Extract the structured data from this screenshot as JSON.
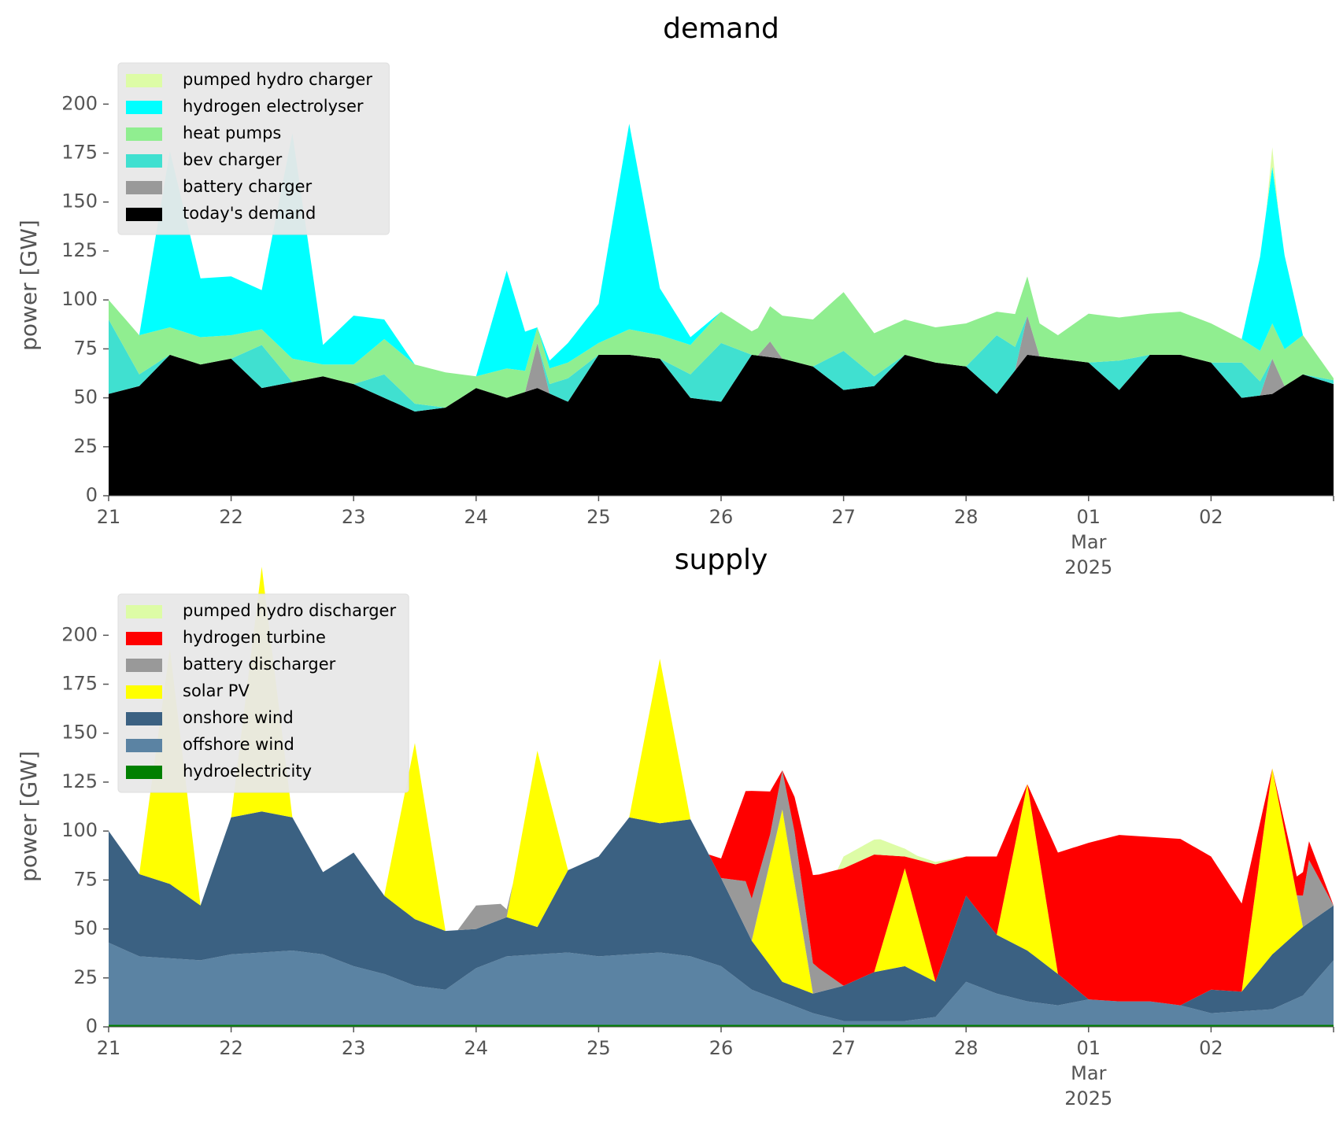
{
  "chart_data": [
    {
      "type": "area",
      "title": "demand",
      "ylabel": "power [GW]",
      "xlabel": "",
      "xlim": [
        "2025-02-21",
        "2025-03-03"
      ],
      "ylim": [
        0,
        215
      ],
      "yticks": [
        0,
        25,
        50,
        75,
        100,
        125,
        150,
        175,
        200
      ],
      "xticks": [
        "21",
        "22",
        "23",
        "24",
        "25",
        "26",
        "27",
        "28",
        "01",
        "02"
      ],
      "xtick_sublabel": {
        "tick": "01",
        "month": "Mar",
        "year": "2025"
      },
      "grid": false,
      "legend_position": "upper-left",
      "stacked": true,
      "legend": [
        {
          "name": "pumped hydro charger",
          "color": "#ddfca6"
        },
        {
          "name": "hydrogen electrolyser",
          "color": "#00ffff"
        },
        {
          "name": "heat pumps",
          "color": "#90ee90"
        },
        {
          "name": "bev charger",
          "color": "#40e0d0"
        },
        {
          "name": "battery charger",
          "color": "#999999"
        },
        {
          "name": "today's demand",
          "color": "#000000"
        }
      ],
      "series": [
        {
          "name": "today's demand",
          "color": "#000000",
          "x": [
            0,
            0.25,
            0.5,
            0.75,
            1,
            1.25,
            1.5,
            1.75,
            2,
            2.25,
            2.5,
            2.75,
            3,
            3.25,
            3.5,
            3.75,
            4,
            4.25,
            4.5,
            4.75,
            5,
            5.25,
            5.5,
            5.75,
            6,
            6.25,
            6.5,
            6.75,
            7,
            7.25,
            7.5,
            7.75,
            8,
            8.25,
            8.5,
            8.75,
            9,
            9.25,
            9.5,
            9.75,
            10
          ],
          "values": [
            52,
            56,
            72,
            67,
            70,
            55,
            58,
            61,
            57,
            50,
            43,
            45,
            55,
            50,
            55,
            48,
            72,
            72,
            70,
            50,
            48,
            72,
            70,
            66,
            54,
            56,
            72,
            68,
            66,
            52,
            72,
            70,
            68,
            54,
            72,
            72,
            68,
            50,
            52,
            62,
            57
          ]
        },
        {
          "name": "battery charger",
          "color": "#999999",
          "x": [
            0,
            1,
            2,
            3,
            3.4,
            3.5,
            3.6,
            4,
            5,
            5.3,
            5.4,
            5.5,
            6,
            7,
            7.4,
            7.5,
            7.6,
            8,
            9,
            9.4,
            9.5,
            9.6,
            10
          ],
          "values": [
            0,
            0,
            0,
            0,
            0,
            23,
            0,
            0,
            0,
            0,
            8,
            0,
            0,
            0,
            0,
            20,
            0,
            0,
            0,
            0,
            18,
            0,
            0
          ]
        },
        {
          "name": "bev charger",
          "color": "#40e0d0",
          "x": [
            0,
            0.25,
            0.5,
            0.75,
            1,
            1.25,
            1.5,
            1.75,
            2,
            2.25,
            2.5,
            2.75,
            3,
            3.25,
            3.5,
            3.75,
            4,
            4.25,
            4.5,
            4.75,
            5,
            5.25,
            5.5,
            5.75,
            6,
            6.25,
            6.5,
            6.75,
            7,
            7.25,
            7.5,
            7.75,
            8,
            8.25,
            8.5,
            8.75,
            9,
            9.25,
            9.5,
            9.75,
            10
          ],
          "values": [
            38,
            6,
            0,
            0,
            0,
            22,
            0,
            0,
            0,
            12,
            4,
            0,
            0,
            0,
            0,
            12,
            0,
            0,
            0,
            12,
            30,
            0,
            0,
            0,
            20,
            5,
            0,
            0,
            0,
            30,
            0,
            0,
            0,
            15,
            0,
            0,
            0,
            18,
            0,
            0,
            2
          ]
        },
        {
          "name": "heat pumps",
          "color": "#90ee90",
          "x": [
            0,
            0.25,
            0.5,
            0.75,
            1,
            1.25,
            1.5,
            1.75,
            2,
            2.25,
            2.5,
            2.75,
            3,
            3.25,
            3.5,
            3.75,
            4,
            4.25,
            4.5,
            4.75,
            5,
            5.25,
            5.5,
            5.75,
            6,
            6.25,
            6.5,
            6.75,
            7,
            7.25,
            7.5,
            7.75,
            8,
            8.25,
            8.5,
            8.75,
            9,
            9.25,
            9.5,
            9.75,
            10
          ],
          "values": [
            10,
            20,
            14,
            14,
            12,
            8,
            12,
            6,
            10,
            18,
            20,
            18,
            6,
            15,
            8,
            8,
            6,
            13,
            12,
            15,
            16,
            12,
            22,
            24,
            30,
            22,
            18,
            18,
            22,
            12,
            20,
            12,
            25,
            22,
            21,
            22,
            20,
            12,
            18,
            20,
            1
          ]
        },
        {
          "name": "hydrogen electrolyser",
          "color": "#00ffff",
          "x": [
            0,
            0.25,
            0.5,
            0.75,
            1,
            1.25,
            1.5,
            1.75,
            2,
            2.25,
            2.5,
            2.75,
            3,
            3.25,
            3.5,
            3.75,
            4,
            4.25,
            4.5,
            4.75,
            5,
            5.25,
            5.5,
            5.75,
            6,
            6.25,
            6.5,
            6.75,
            7,
            7.25,
            7.5,
            7.75,
            8,
            8.25,
            8.5,
            8.75,
            9,
            9.25,
            9.5,
            9.75,
            10
          ],
          "values": [
            0,
            0,
            90,
            30,
            30,
            20,
            115,
            10,
            25,
            10,
            0,
            0,
            0,
            50,
            0,
            10,
            20,
            105,
            24,
            4,
            0,
            0,
            0,
            0,
            0,
            0,
            0,
            0,
            0,
            0,
            0,
            0,
            0,
            0,
            0,
            0,
            0,
            0,
            80,
            0,
            0
          ]
        },
        {
          "name": "pumped hydro charger",
          "color": "#ddfca6",
          "x": [
            0,
            9.45,
            9.5,
            9.55,
            10
          ],
          "values": [
            0,
            0,
            10,
            0,
            0
          ]
        }
      ]
    },
    {
      "type": "area",
      "title": "supply",
      "ylabel": "power [GW]",
      "xlabel": "",
      "xlim": [
        "2025-02-21",
        "2025-03-03"
      ],
      "ylim": [
        0,
        215
      ],
      "yticks": [
        0,
        25,
        50,
        75,
        100,
        125,
        150,
        175,
        200
      ],
      "xticks": [
        "21",
        "22",
        "23",
        "24",
        "25",
        "26",
        "27",
        "28",
        "01",
        "02"
      ],
      "xtick_sublabel": {
        "tick": "01",
        "month": "Mar",
        "year": "2025"
      },
      "grid": false,
      "legend_position": "upper-left",
      "stacked": true,
      "legend": [
        {
          "name": "pumped hydro discharger",
          "color": "#ddfca6"
        },
        {
          "name": "hydrogen turbine",
          "color": "#ff0000"
        },
        {
          "name": "battery discharger",
          "color": "#999999"
        },
        {
          "name": "solar PV",
          "color": "#ffff00"
        },
        {
          "name": "onshore wind",
          "color": "#3b6182"
        },
        {
          "name": "offshore wind",
          "color": "#5b83a3"
        },
        {
          "name": "hydroelectricity",
          "color": "#008000"
        }
      ],
      "series": [
        {
          "name": "hydroelectricity",
          "color": "#008000",
          "x": [
            0,
            10
          ],
          "values": [
            1,
            1
          ]
        },
        {
          "name": "offshore wind",
          "color": "#5b83a3",
          "x": [
            0,
            0.25,
            0.5,
            0.75,
            1,
            1.25,
            1.5,
            1.75,
            2,
            2.25,
            2.5,
            2.75,
            3,
            3.25,
            3.5,
            3.75,
            4,
            4.25,
            4.5,
            4.75,
            5,
            5.25,
            5.5,
            5.75,
            6,
            6.25,
            6.5,
            6.75,
            7,
            7.25,
            7.5,
            7.75,
            8,
            8.25,
            8.5,
            8.75,
            9,
            9.25,
            9.5,
            9.75,
            10
          ],
          "values": [
            42,
            35,
            34,
            33,
            36,
            37,
            38,
            36,
            30,
            26,
            20,
            18,
            29,
            35,
            36,
            37,
            35,
            36,
            37,
            35,
            30,
            18,
            12,
            6,
            2,
            2,
            2,
            4,
            22,
            16,
            12,
            10,
            13,
            12,
            12,
            10,
            6,
            7,
            8,
            15,
            33
          ]
        },
        {
          "name": "onshore wind",
          "color": "#3b6182",
          "x": [
            0,
            0.25,
            0.5,
            0.75,
            1,
            1.25,
            1.5,
            1.75,
            2,
            2.25,
            2.5,
            2.75,
            3,
            3.25,
            3.5,
            3.75,
            4,
            4.25,
            4.5,
            4.75,
            5,
            5.25,
            5.5,
            5.75,
            6,
            6.25,
            6.5,
            6.75,
            7,
            7.25,
            7.5,
            7.75,
            8,
            8.25,
            8.5,
            8.75,
            9,
            9.25,
            9.5,
            9.75,
            10
          ],
          "values": [
            57,
            42,
            38,
            28,
            70,
            72,
            68,
            42,
            58,
            40,
            34,
            30,
            20,
            20,
            14,
            42,
            51,
            70,
            66,
            70,
            45,
            25,
            10,
            10,
            18,
            25,
            28,
            18,
            44,
            30,
            26,
            16,
            0,
            0,
            0,
            0,
            12,
            10,
            28,
            35,
            28
          ]
        },
        {
          "name": "solar PV",
          "color": "#ffff00",
          "x": [
            0,
            0.25,
            0.5,
            0.75,
            1,
            1.25,
            1.5,
            1.75,
            2,
            2.25,
            2.5,
            2.75,
            3,
            3.25,
            3.5,
            3.75,
            4,
            4.25,
            4.5,
            4.75,
            5,
            5.25,
            5.5,
            5.75,
            6,
            6.25,
            6.5,
            6.75,
            7,
            7.25,
            7.5,
            7.75,
            8,
            8.25,
            8.5,
            8.75,
            9,
            9.25,
            9.5,
            9.75,
            10
          ],
          "values": [
            0,
            0,
            120,
            0,
            0,
            125,
            0,
            0,
            0,
            0,
            90,
            0,
            0,
            0,
            90,
            0,
            0,
            0,
            84,
            0,
            0,
            0,
            88,
            0,
            0,
            0,
            50,
            0,
            0,
            0,
            85,
            0,
            0,
            0,
            0,
            0,
            0,
            0,
            95,
            0,
            0
          ]
        },
        {
          "name": "battery discharger",
          "color": "#999999",
          "x": [
            0,
            2.85,
            3,
            3.2,
            3.3,
            5,
            5.2,
            5.4,
            5.6,
            5.8,
            6,
            9,
            9.7,
            9.8,
            10
          ],
          "values": [
            0,
            0,
            12,
            8,
            0,
            0,
            24,
            14,
            26,
            12,
            0,
            0,
            0,
            32,
            0
          ]
        },
        {
          "name": "hydrogen turbine",
          "color": "#ff0000",
          "x": [
            0,
            4.9,
            5,
            5.25,
            5.5,
            5.75,
            6,
            6.25,
            6.5,
            6.75,
            7,
            7.25,
            7.5,
            7.75,
            8,
            8.25,
            8.5,
            8.75,
            9,
            9.25,
            9.5,
            9.75,
            10
          ],
          "values": [
            0,
            0,
            10,
            55,
            0,
            45,
            60,
            60,
            6,
            60,
            20,
            40,
            0,
            62,
            80,
            85,
            84,
            85,
            68,
            45,
            0,
            12,
            0
          ]
        },
        {
          "name": "pumped hydro discharger",
          "color": "#ddfca6",
          "x": [
            0,
            5.95,
            6,
            6.3,
            6.6,
            7.0,
            10
          ],
          "values": [
            0,
            0,
            6,
            8,
            2,
            0,
            0
          ]
        }
      ]
    }
  ]
}
